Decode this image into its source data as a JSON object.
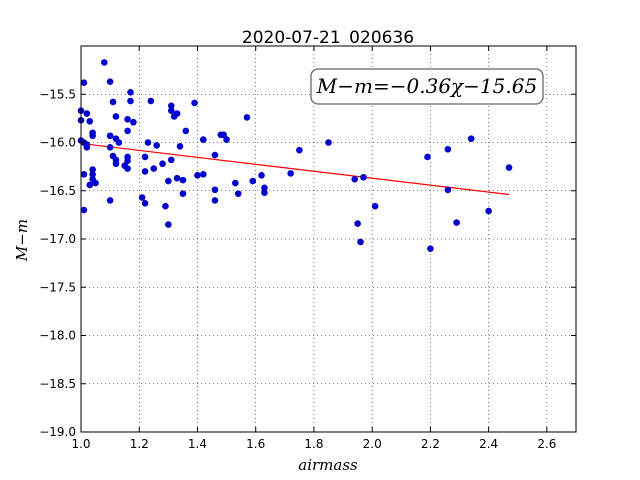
{
  "chart_data": {
    "type": "scatter",
    "title": "2020-07-21_020636",
    "xlabel": "airmass",
    "ylabel": "M−m",
    "xlim": [
      1.0,
      2.7
    ],
    "ylim": [
      -19.0,
      -15.0
    ],
    "y_inverted": true,
    "grid": true,
    "xticks": [
      "1.0",
      "1.2",
      "1.4",
      "1.6",
      "1.8",
      "2.0",
      "2.2",
      "2.4",
      "2.6"
    ],
    "yticks": [
      "−15.5",
      "−16.0",
      "−16.5",
      "−17.0",
      "−17.5",
      "−18.0",
      "−18.5",
      "−19.0"
    ],
    "annotation": "M−m=−0.36χ−15.65",
    "fit_line": {
      "slope": -0.36,
      "intercept": -15.65,
      "x_range": [
        1.02,
        2.47
      ],
      "color": "#ff0000"
    },
    "point_color": "#0000cc",
    "points": [
      [
        1.01,
        -15.38
      ],
      [
        1.0,
        -15.67
      ],
      [
        1.0,
        -15.77
      ],
      [
        1.02,
        -15.7
      ],
      [
        1.03,
        -15.78
      ],
      [
        1.04,
        -15.9
      ],
      [
        1.04,
        -15.93
      ],
      [
        1.0,
        -15.98
      ],
      [
        1.01,
        -16.0
      ],
      [
        1.02,
        -16.02
      ],
      [
        1.02,
        -16.05
      ],
      [
        1.01,
        -16.33
      ],
      [
        1.04,
        -16.28
      ],
      [
        1.04,
        -16.33
      ],
      [
        1.04,
        -16.38
      ],
      [
        1.05,
        -16.42
      ],
      [
        1.03,
        -16.44
      ],
      [
        1.01,
        -16.7
      ],
      [
        1.08,
        -15.17
      ],
      [
        1.1,
        -15.37
      ],
      [
        1.11,
        -15.58
      ],
      [
        1.12,
        -15.73
      ],
      [
        1.1,
        -15.93
      ],
      [
        1.12,
        -15.96
      ],
      [
        1.1,
        -16.05
      ],
      [
        1.11,
        -16.14
      ],
      [
        1.12,
        -16.18
      ],
      [
        1.12,
        -16.22
      ],
      [
        1.13,
        -16.0
      ],
      [
        1.15,
        -16.24
      ],
      [
        1.16,
        -16.27
      ],
      [
        1.16,
        -16.19
      ],
      [
        1.16,
        -16.15
      ],
      [
        1.16,
        -15.88
      ],
      [
        1.16,
        -15.76
      ],
      [
        1.17,
        -15.57
      ],
      [
        1.17,
        -15.48
      ],
      [
        1.18,
        -15.79
      ],
      [
        1.1,
        -16.6
      ],
      [
        1.21,
        -16.57
      ],
      [
        1.22,
        -16.63
      ],
      [
        1.22,
        -16.15
      ],
      [
        1.22,
        -16.3
      ],
      [
        1.23,
        -16.0
      ],
      [
        1.24,
        -15.57
      ],
      [
        1.25,
        -16.27
      ],
      [
        1.26,
        -16.03
      ],
      [
        1.28,
        -16.22
      ],
      [
        1.29,
        -16.66
      ],
      [
        1.3,
        -16.85
      ],
      [
        1.3,
        -16.4
      ],
      [
        1.31,
        -16.18
      ],
      [
        1.31,
        -15.62
      ],
      [
        1.31,
        -15.67
      ],
      [
        1.32,
        -15.73
      ],
      [
        1.33,
        -15.7
      ],
      [
        1.33,
        -16.37
      ],
      [
        1.34,
        -16.04
      ],
      [
        1.35,
        -16.39
      ],
      [
        1.35,
        -16.53
      ],
      [
        1.36,
        -15.88
      ],
      [
        1.39,
        -15.59
      ],
      [
        1.4,
        -16.34
      ],
      [
        1.42,
        -15.97
      ],
      [
        1.42,
        -16.33
      ],
      [
        1.46,
        -16.13
      ],
      [
        1.46,
        -16.49
      ],
      [
        1.46,
        -16.6
      ],
      [
        1.48,
        -15.92
      ],
      [
        1.49,
        -15.92
      ],
      [
        1.5,
        -15.97
      ],
      [
        1.53,
        -16.42
      ],
      [
        1.54,
        -16.53
      ],
      [
        1.57,
        -15.74
      ],
      [
        1.59,
        -16.4
      ],
      [
        1.62,
        -16.34
      ],
      [
        1.63,
        -16.52
      ],
      [
        1.63,
        -16.47
      ],
      [
        1.72,
        -16.32
      ],
      [
        1.75,
        -16.08
      ],
      [
        1.85,
        -16.0
      ],
      [
        1.94,
        -16.38
      ],
      [
        1.95,
        -16.84
      ],
      [
        1.96,
        -17.03
      ],
      [
        1.97,
        -16.36
      ],
      [
        2.01,
        -16.66
      ],
      [
        2.19,
        -16.15
      ],
      [
        2.2,
        -17.1
      ],
      [
        2.26,
        -16.49
      ],
      [
        2.26,
        -16.07
      ],
      [
        2.29,
        -16.83
      ],
      [
        2.34,
        -15.96
      ],
      [
        2.4,
        -16.71
      ],
      [
        2.47,
        -16.26
      ]
    ]
  }
}
